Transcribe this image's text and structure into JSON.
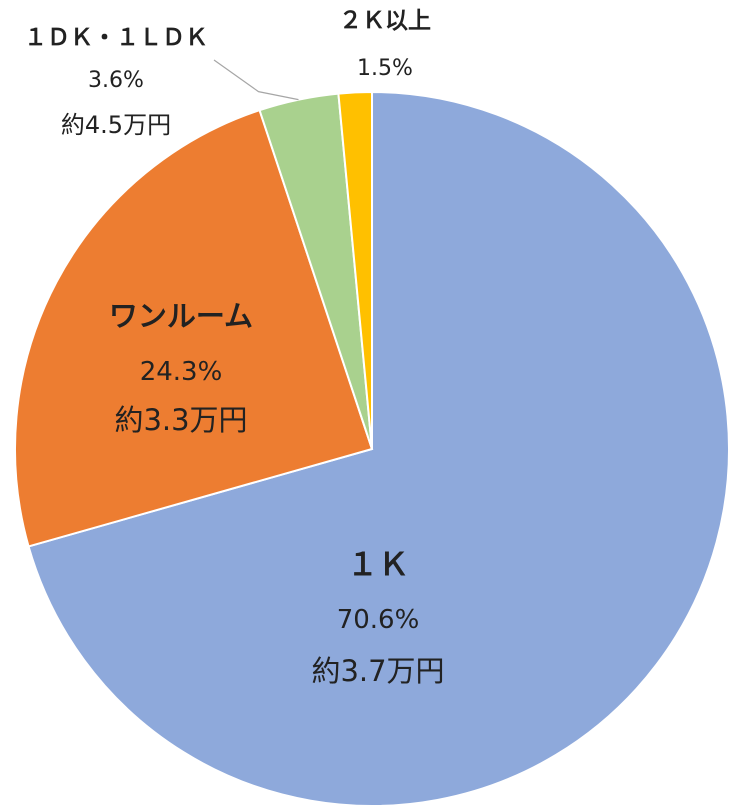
{
  "chart_data": {
    "type": "pie",
    "start_angle_deg": 0,
    "direction": "clockwise",
    "legend": "none",
    "categories": [
      "１Ｋ",
      "ワンルーム",
      "１ＤＫ・１ＬＤＫ",
      "２Ｋ以上"
    ],
    "values": [
      70.6,
      24.3,
      3.6,
      1.5
    ],
    "slices": [
      {
        "name": "１Ｋ",
        "value": 70.6,
        "pct_label": "70.6%",
        "rent_label": "約3.7万円",
        "color": "#8EA9DB"
      },
      {
        "name": "ワンルーム",
        "value": 24.3,
        "pct_label": "24.3%",
        "rent_label": "約3.3万円",
        "color": "#ED7D31"
      },
      {
        "name": "１ＤＫ・１ＬＤＫ",
        "value": 3.6,
        "pct_label": "3.6%",
        "rent_label": "約4.5万円",
        "color": "#A9D18E"
      },
      {
        "name": "２Ｋ以上",
        "value": 1.5,
        "pct_label": "1.5%",
        "rent_label": "",
        "color": "#FFC000"
      }
    ]
  }
}
